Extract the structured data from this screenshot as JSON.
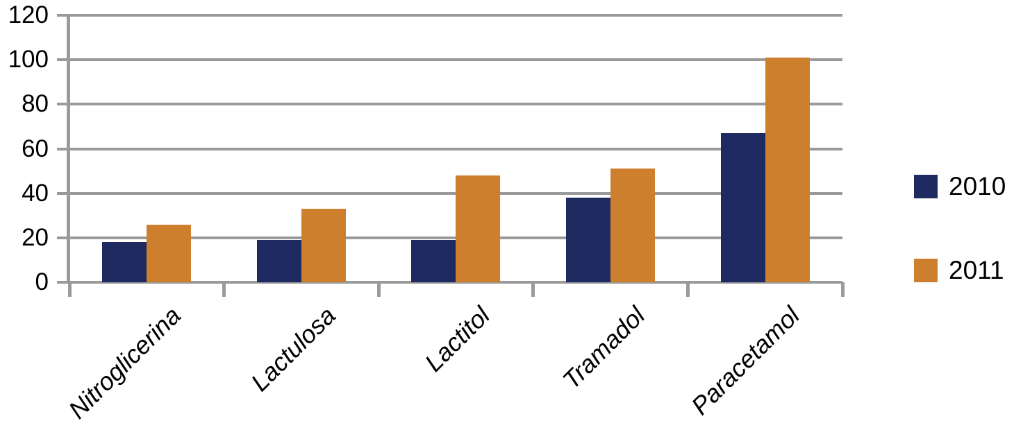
{
  "chart_data": {
    "type": "bar",
    "title": "",
    "xlabel": "",
    "ylabel": "",
    "categories": [
      "Nitroglicerina",
      "Lactulosa",
      "Lactitol",
      "Tramadol",
      "Paracetamol"
    ],
    "series": [
      {
        "name": "2010",
        "color": "#1E2A60",
        "values": [
          18,
          19,
          19,
          38,
          67
        ]
      },
      {
        "name": "2011",
        "color": "#CD7F2D",
        "values": [
          26,
          33,
          48,
          51,
          101
        ]
      }
    ],
    "ylim": [
      0,
      120
    ],
    "ytick_step": 20,
    "y_tick_labels": [
      "0",
      "20",
      "40",
      "60",
      "80",
      "100",
      "120"
    ],
    "grid": "horizontal",
    "gridline_color": "#9A9A9A",
    "axis_color": "#9A9A9A",
    "text_color": "#000000",
    "background_color": "#FFFFFF",
    "legend_position": "right",
    "legend_entries": [
      "2010",
      "2011"
    ]
  }
}
